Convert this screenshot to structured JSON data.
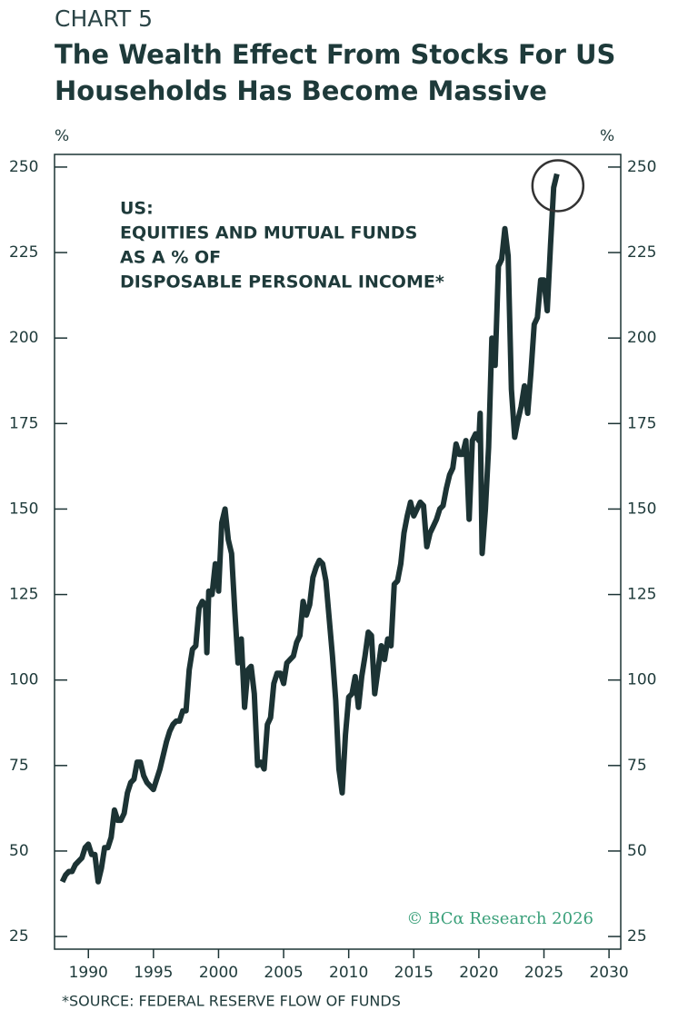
{
  "chart_data": {
    "type": "line",
    "kicker": "CHART 5",
    "title": [
      "The Wealth Effect From Stocks For US",
      "Households Has Become Massive"
    ],
    "y_unit": "%",
    "y2_unit": "%",
    "annotation": [
      "US:",
      "EQUITIES AND MUTUAL FUNDS",
      "AS A % OF",
      "DISPOSABLE PERSONAL INCOME*"
    ],
    "credit": "© BCα Research 2026",
    "source": "*SOURCE: FEDERAL RESERVE FLOW OF FUNDS",
    "color": "#1c3334",
    "xlim": [
      1987.4,
      2030.9
    ],
    "xticks": [
      1990,
      1995,
      2000,
      2005,
      2010,
      2015,
      2020,
      2025,
      2030
    ],
    "ylim": [
      21.3,
      253.7
    ],
    "yticks": [
      25,
      50,
      75,
      100,
      125,
      150,
      175,
      200,
      225,
      250
    ],
    "y2lim": [
      21.3,
      253.7
    ],
    "y2ticks": [
      25,
      50,
      75,
      100,
      125,
      150,
      175,
      200,
      225,
      250
    ],
    "x": [
      1988,
      1988.25,
      1988.5,
      1988.75,
      1989,
      1989.25,
      1989.5,
      1989.75,
      1990,
      1990.25,
      1990.5,
      1990.75,
      1991,
      1991.25,
      1991.5,
      1991.75,
      1992,
      1992.25,
      1992.5,
      1992.75,
      1993,
      1993.25,
      1993.5,
      1993.75,
      1994,
      1994.25,
      1994.5,
      1994.75,
      1995,
      1995.5,
      1996,
      1996.25,
      1996.5,
      1996.75,
      1997,
      1997.25,
      1997.5,
      1997.75,
      1998,
      1998.25,
      1998.5,
      1998.75,
      1999,
      1999.1,
      1999.25,
      1999.5,
      1999.75,
      2000,
      2000.25,
      2000.5,
      2000.75,
      2001,
      2001.25,
      2001.5,
      2001.75,
      2002,
      2002.25,
      2002.5,
      2002.75,
      2003,
      2003.25,
      2003.5,
      2003.75,
      2004,
      2004.25,
      2004.5,
      2004.75,
      2005,
      2005.25,
      2005.5,
      2005.75,
      2006,
      2006.25,
      2006.5,
      2006.75,
      2007,
      2007.25,
      2007.5,
      2007.75,
      2008,
      2008.25,
      2008.5,
      2008.75,
      2009,
      2009.25,
      2009.5,
      2009.75,
      2010,
      2010.25,
      2010.5,
      2010.75,
      2011,
      2011.25,
      2011.5,
      2011.75,
      2012,
      2012.25,
      2012.5,
      2012.75,
      2013,
      2013.25,
      2013.5,
      2013.75,
      2014,
      2014.25,
      2014.5,
      2014.75,
      2015,
      2015.25,
      2015.5,
      2015.75,
      2016,
      2016.25,
      2016.5,
      2016.75,
      2017,
      2017.25,
      2017.5,
      2017.75,
      2018,
      2018.25,
      2018.5,
      2018.75,
      2019,
      2019.25,
      2019.5,
      2019.75,
      2020,
      2020.1,
      2020.25,
      2020.5,
      2020.75,
      2021,
      2021.25,
      2021.5,
      2021.75,
      2022,
      2022.25,
      2022.5,
      2022.75,
      2023,
      2023.25,
      2023.5,
      2023.75,
      2024,
      2024.25,
      2024.5,
      2024.75,
      2025,
      2025.25,
      2025.5,
      2025.75,
      2026
    ],
    "values": [
      41,
      43,
      44,
      44,
      46,
      47,
      48,
      51,
      52,
      49,
      49,
      41,
      45,
      51,
      51,
      54,
      62,
      59,
      59,
      61,
      67,
      70,
      71,
      76,
      76,
      72,
      70,
      69,
      68,
      74,
      82,
      85,
      87,
      88,
      88,
      91,
      91,
      103,
      109,
      110,
      121,
      123,
      122,
      108,
      126,
      125,
      134,
      126,
      146,
      150,
      141,
      137,
      120,
      105,
      112,
      92,
      103,
      104,
      96,
      75,
      76,
      74,
      87,
      89,
      99,
      102,
      102,
      99,
      105,
      106,
      107,
      111,
      113,
      123,
      119,
      122,
      130,
      133,
      135,
      134,
      129,
      118,
      107,
      94,
      74,
      67,
      84,
      95,
      96,
      101,
      92,
      101,
      107,
      114,
      113,
      96,
      103,
      110,
      106,
      112,
      110,
      128,
      129,
      134,
      143,
      148,
      152,
      148,
      150,
      152,
      151,
      139,
      143,
      145,
      147,
      150,
      151,
      156,
      160,
      162,
      169,
      166,
      166,
      170,
      147,
      170,
      172,
      170,
      178,
      137,
      150,
      168,
      200,
      192,
      221,
      223,
      232,
      224,
      185,
      171,
      176,
      180,
      186,
      178,
      190,
      204,
      206,
      217,
      217,
      208,
      227,
      244,
      248
    ]
  }
}
